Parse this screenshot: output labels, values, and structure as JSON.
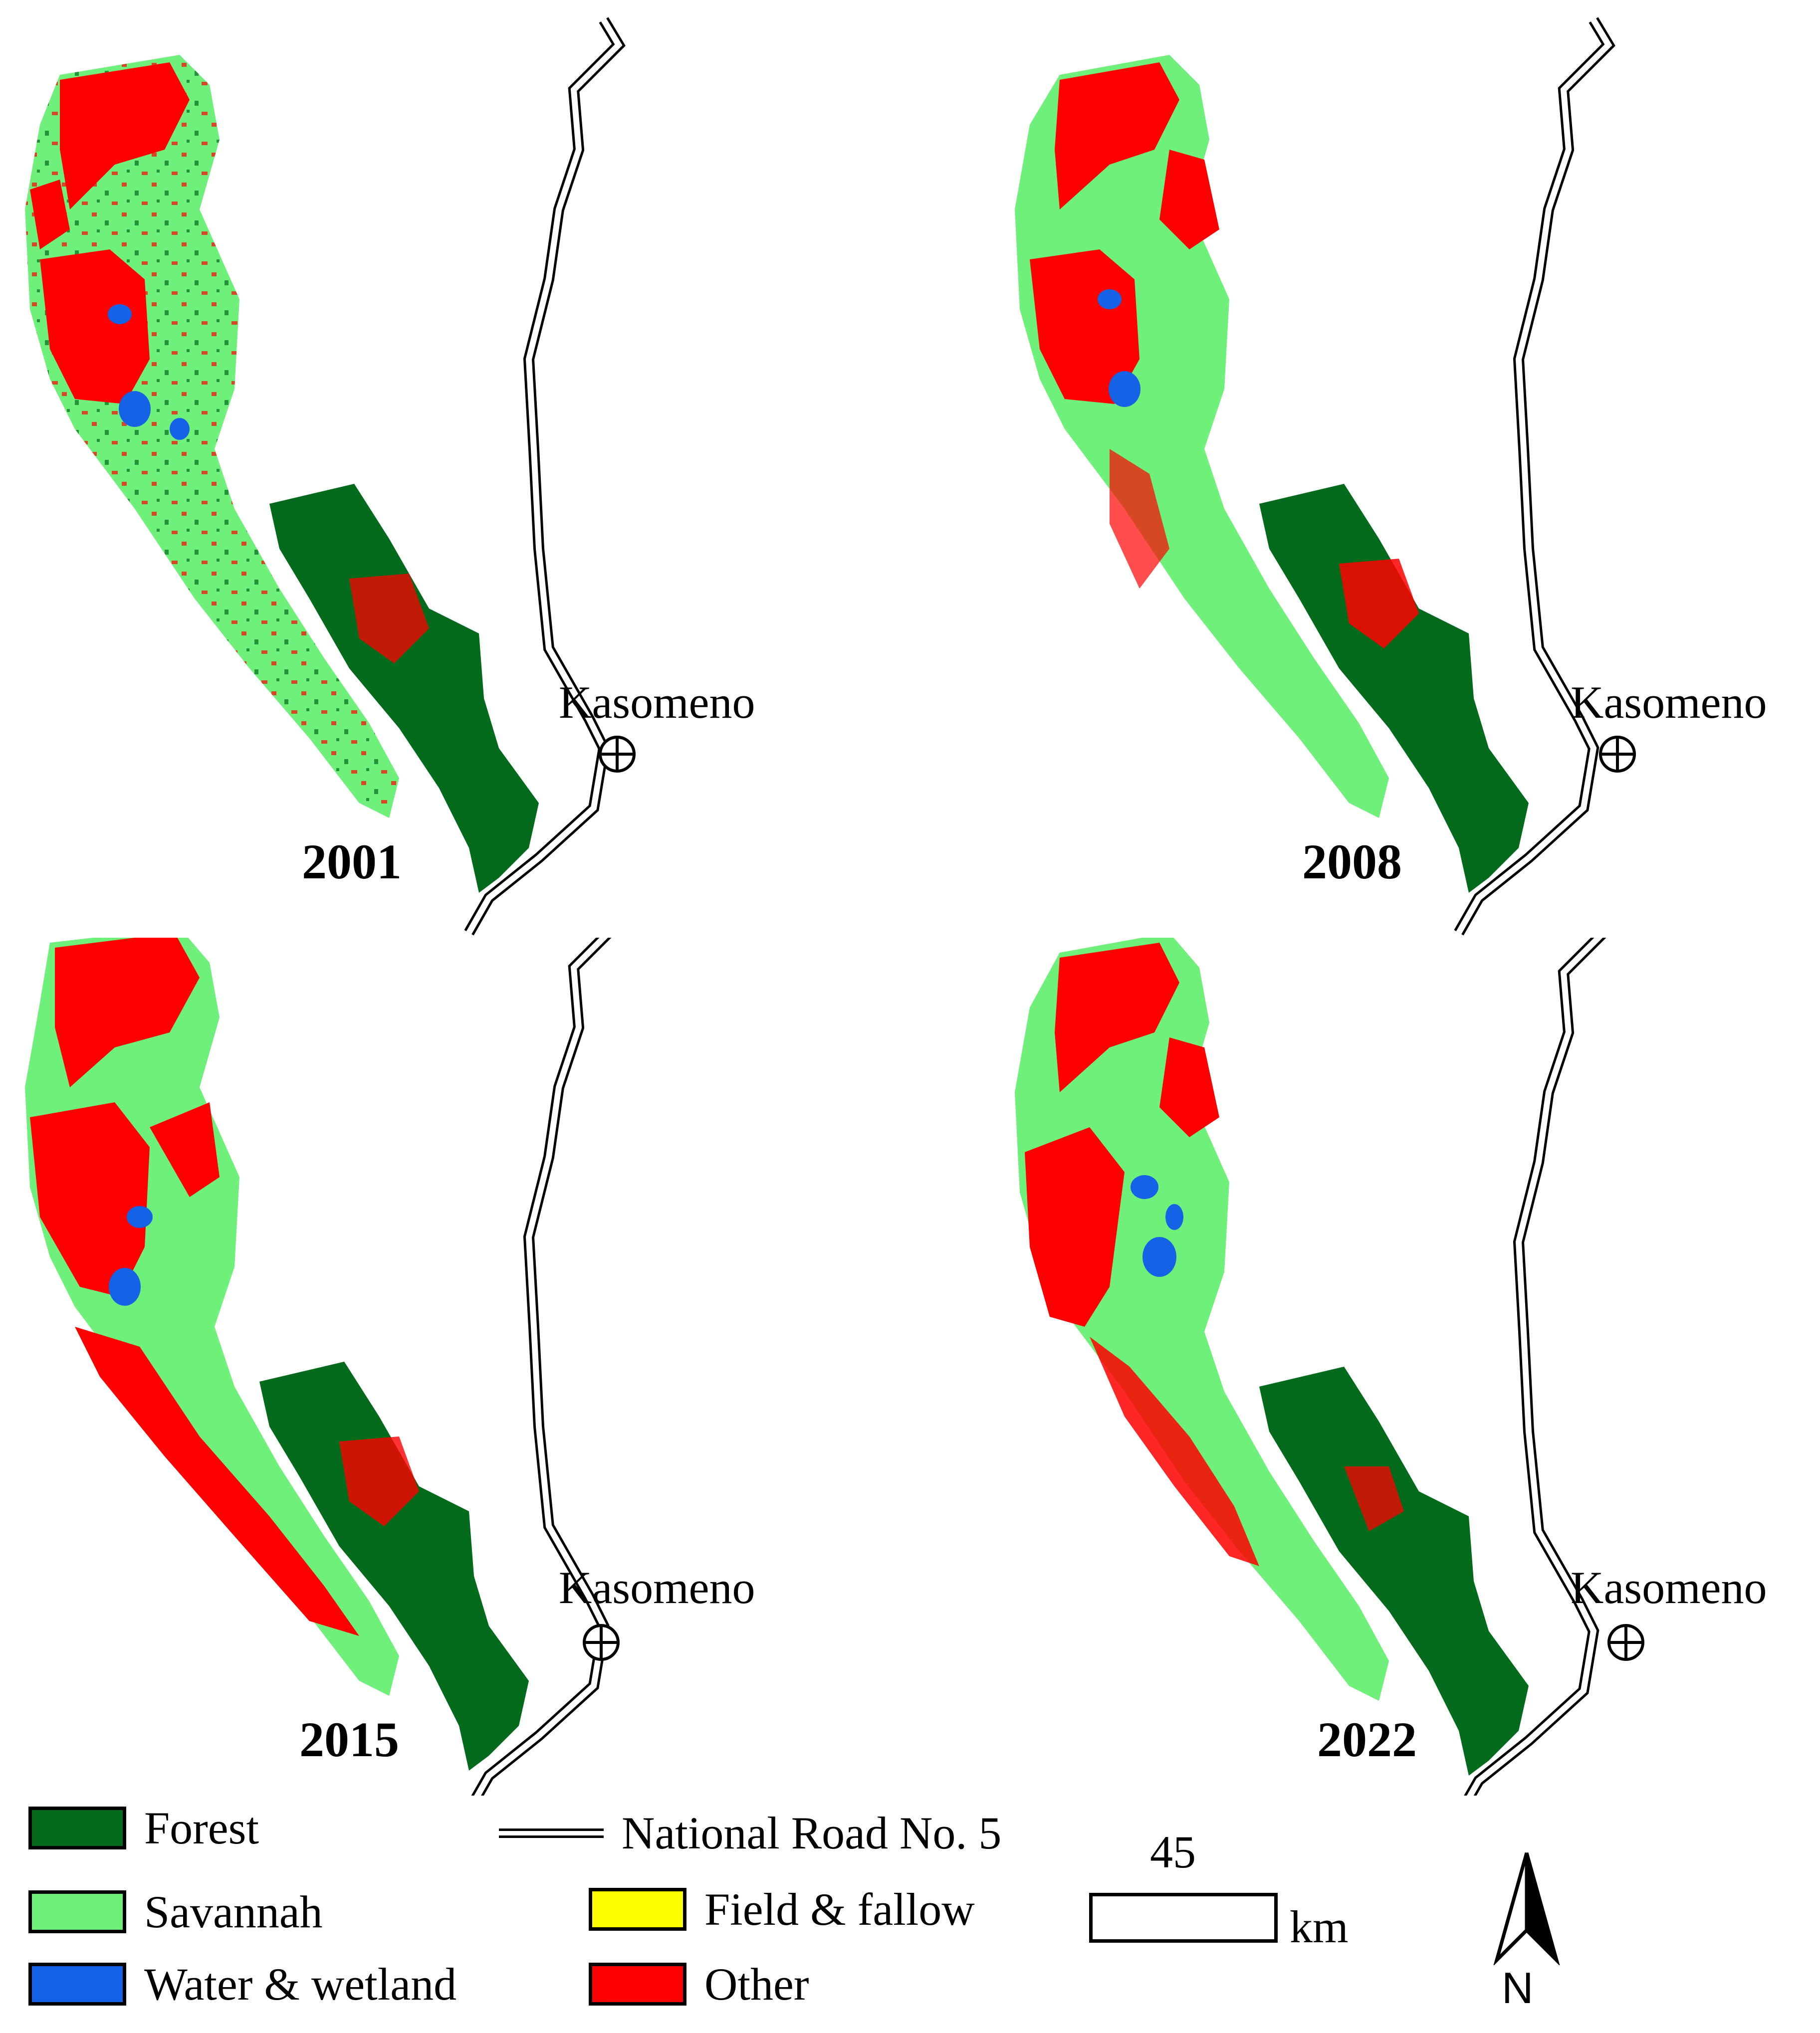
{
  "panels": [
    {
      "year": "2001",
      "place": "Kasomeno"
    },
    {
      "year": "2008",
      "place": "Kasomeno"
    },
    {
      "year": "2015",
      "place": "Kasomeno"
    },
    {
      "year": "2022",
      "place": "Kasomeno"
    }
  ],
  "legend": {
    "classes": [
      {
        "label": "Forest",
        "color": "#056b1c"
      },
      {
        "label": "Savannah",
        "color": "#6ff07b"
      },
      {
        "label": "Water & wetland",
        "color": "#1662e6"
      },
      {
        "label": "Field & fallow",
        "color": "#ffff00"
      },
      {
        "label": "Other",
        "color": "#ff0000"
      }
    ],
    "road": "National Road No. 5"
  },
  "scale": {
    "value": "45",
    "unit": "km"
  },
  "north_arrow": "N"
}
